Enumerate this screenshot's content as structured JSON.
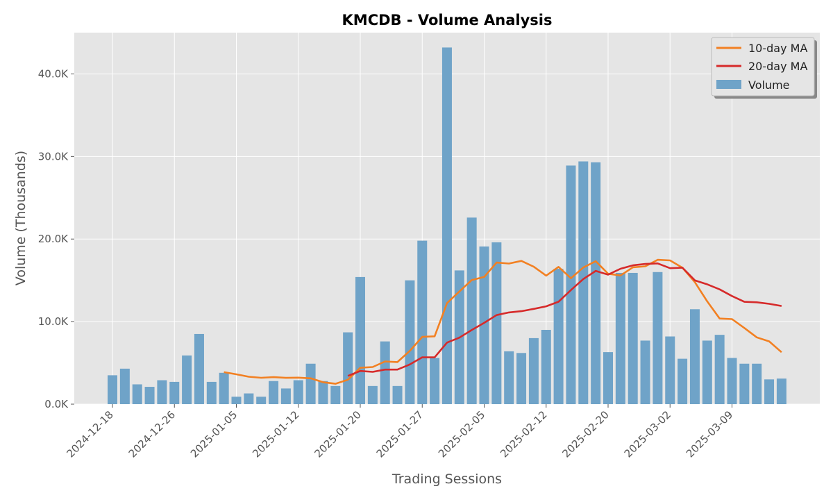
{
  "chart_data": {
    "type": "bar",
    "title": "KMCDB - Volume Analysis",
    "xlabel": "Trading Sessions",
    "ylabel": "Volume (Thousands)",
    "ylim": [
      0,
      45000
    ],
    "y_ticks": [
      0,
      10000,
      20000,
      30000,
      40000
    ],
    "y_tick_labels": [
      "0.0K",
      "10.0K",
      "20.0K",
      "30.0K",
      "40.0K"
    ],
    "x_tick_labels": [
      "2024-12-18",
      "2024-12-26",
      "2025-01-05",
      "2025-01-12",
      "2025-01-20",
      "2025-01-27",
      "2025-02-05",
      "2025-02-12",
      "2025-02-20",
      "2025-03-02",
      "2025-03-09"
    ],
    "x_tick_indices": [
      0,
      5,
      10,
      15,
      20,
      25,
      30,
      35,
      40,
      45,
      50
    ],
    "grid": true,
    "legend_position": "top-right",
    "series": [
      {
        "name": "Volume",
        "kind": "bar",
        "color": "#6fa3c8",
        "values": [
          3500,
          4300,
          2400,
          2100,
          2900,
          2700,
          5900,
          8500,
          2700,
          3800,
          900,
          1300,
          900,
          2800,
          1900,
          2900,
          4900,
          2800,
          2200,
          8700,
          15400,
          2200,
          7600,
          2200,
          15000,
          19800,
          5600,
          43200,
          16200,
          22600,
          19100,
          19600,
          6400,
          6200,
          8000,
          9000,
          16400,
          28900,
          29400,
          29300,
          6300,
          15900,
          15900,
          7700,
          16000,
          8200,
          5500,
          11500,
          7700,
          8400,
          5600,
          4900,
          4900,
          3000,
          3100
        ]
      },
      {
        "name": "10-day MA",
        "kind": "line",
        "color": "#f28022",
        "values": [
          null,
          null,
          null,
          null,
          null,
          null,
          null,
          null,
          null,
          3880,
          3620,
          3320,
          3200,
          3270,
          3190,
          3210,
          3130,
          2660,
          2470,
          2960,
          4410,
          4500,
          5170,
          5100,
          6460,
          8150,
          8220,
          12250,
          13650,
          15040,
          15410,
          17150,
          17030,
          17350,
          16650,
          15570,
          16630,
          15250,
          16550,
          17320,
          15800,
          15590,
          16580,
          16700,
          17490,
          17410,
          16530,
          14780,
          12450,
          10370,
          10300,
          9230,
          8090,
          7600,
          6290
        ]
      },
      {
        "name": "20-day MA",
        "kind": "line",
        "color": "#d62a2a",
        "values": [
          null,
          null,
          null,
          null,
          null,
          null,
          null,
          null,
          null,
          null,
          null,
          null,
          null,
          null,
          null,
          null,
          null,
          null,
          null,
          3420,
          4020,
          3910,
          4190,
          4190,
          4810,
          5680,
          5670,
          7460,
          8060,
          8990,
          9850,
          10790,
          11110,
          11260,
          11540,
          11850,
          12410,
          13820,
          15160,
          16140,
          15690,
          16400,
          16810,
          16980,
          17050,
          16470,
          16530,
          15000,
          14520,
          13900,
          13100,
          12400,
          12340,
          12150,
          11890
        ]
      }
    ]
  }
}
